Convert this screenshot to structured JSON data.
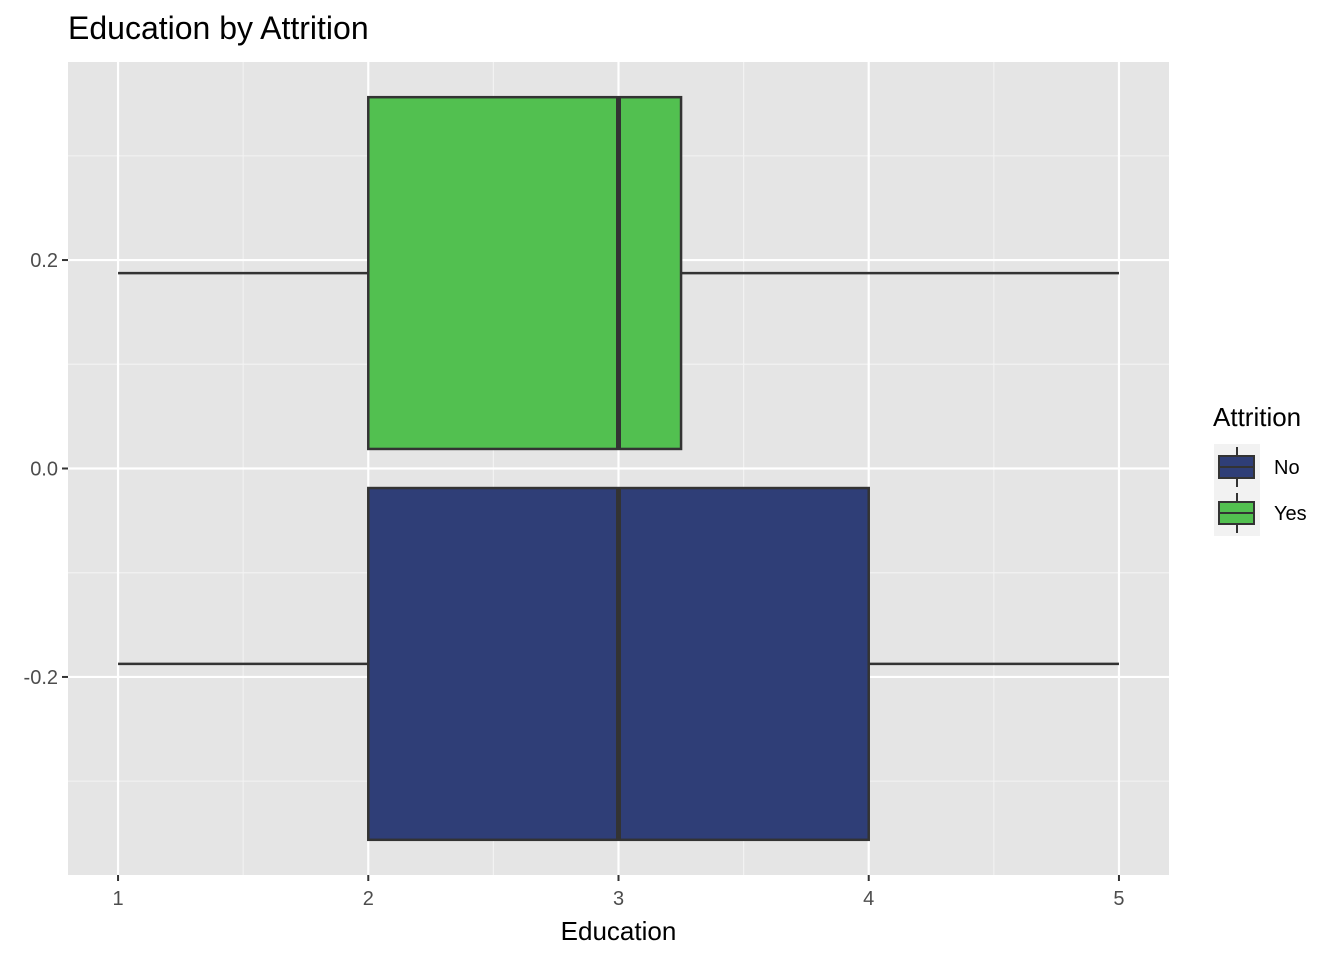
{
  "chart_data": {
    "type": "boxplot",
    "title": "Education by Attrition",
    "xlabel": "Education",
    "ylabel": "",
    "xlim": [
      0.8,
      5.2
    ],
    "ylim": [
      -0.39,
      0.39
    ],
    "x_ticks": [
      1,
      2,
      3,
      4,
      5
    ],
    "x_tick_labels": [
      "1",
      "2",
      "3",
      "4",
      "5"
    ],
    "y_ticks": [
      0.2,
      0.0,
      -0.2
    ],
    "y_tick_labels": [
      "0.2",
      "0.0",
      "-0.2"
    ],
    "grid": true,
    "legend_title": "Attrition",
    "legend_position": "right",
    "series": [
      {
        "name": "No",
        "color": "#2f3e77",
        "min": 1,
        "q1": 2,
        "median": 3,
        "q3": 4,
        "max": 5,
        "position": -0.1875
      },
      {
        "name": "Yes",
        "color": "#52c050",
        "min": 1,
        "q1": 2,
        "median": 3,
        "q3": 3.25,
        "max": 5,
        "position": 0.1875
      }
    ],
    "box_height": 0.3375
  }
}
